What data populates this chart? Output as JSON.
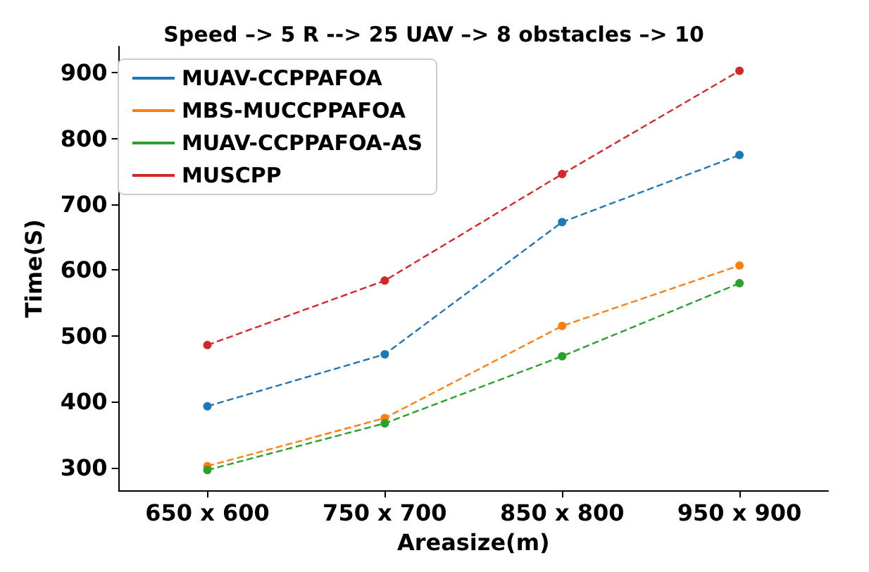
{
  "chart_data": {
    "type": "line",
    "title": "Speed –> 5 R --> 25 UAV –> 8 obstacles –> 10",
    "xlabel": "Areasize(m)",
    "ylabel": "Time(S)",
    "categories": [
      "650 x 600",
      "750 x 700",
      "850 x 800",
      "950 x 900"
    ],
    "series": [
      {
        "name": "MUAV-CCPPAFOA",
        "color": "#1f77b4",
        "values": [
          393,
          472,
          673,
          775
        ]
      },
      {
        "name": "MBS-MUCCPPAFOA",
        "color": "#ff7f0e",
        "values": [
          302,
          375,
          515,
          607
        ]
      },
      {
        "name": "MUAV-CCPPAFOA-AS",
        "color": "#2ca02c",
        "values": [
          296,
          367,
          469,
          580
        ]
      },
      {
        "name": "MUSCPP",
        "color": "#d62728",
        "values": [
          486,
          584,
          746,
          903
        ]
      }
    ],
    "ylim": [
      265,
      940
    ],
    "yticks": [
      300,
      400,
      500,
      600,
      700,
      800,
      900
    ],
    "grid": false,
    "legend": "top left",
    "marker": "circle",
    "line_style": "dashed"
  }
}
